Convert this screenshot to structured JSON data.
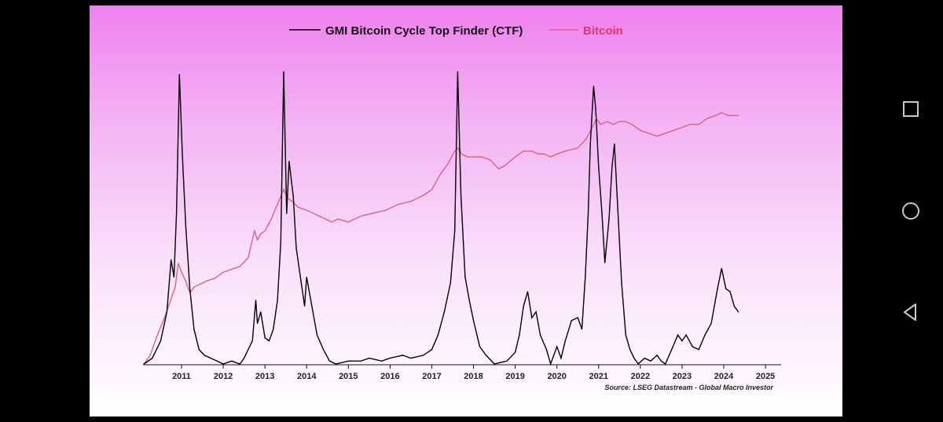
{
  "nav_icons": [
    "recent-apps-icon",
    "home-icon",
    "back-icon"
  ],
  "chart_data": {
    "type": "line",
    "x_ticks": [
      "2011",
      "2012",
      "2013",
      "2014",
      "2015",
      "2016",
      "2017",
      "2018",
      "2019",
      "2020",
      "2021",
      "2022",
      "2023",
      "2024",
      "2025"
    ],
    "x_range": [
      2010.1,
      2025.6
    ],
    "colors": {
      "ctf": "#000000",
      "bitcoin": "#e0607e",
      "legend_bitcoin_text": "#e0386a"
    },
    "legend": {
      "position": "top",
      "ctf_label": "GMI Bitcoin Cycle Top Finder (CTF)",
      "btc_label": "Bitcoin"
    },
    "source": "Source: LSEG Datastream - Global Macro Investor",
    "grid": false,
    "series": [
      {
        "name": "GMI Bitcoin Cycle Top Finder (CTF)",
        "scale": "normalized 0-100",
        "points": [
          [
            2010.1,
            0
          ],
          [
            2010.3,
            2
          ],
          [
            2010.5,
            8
          ],
          [
            2010.65,
            18
          ],
          [
            2010.75,
            36
          ],
          [
            2010.82,
            30
          ],
          [
            2010.88,
            52
          ],
          [
            2010.95,
            100
          ],
          [
            2011.02,
            72
          ],
          [
            2011.1,
            48
          ],
          [
            2011.2,
            26
          ],
          [
            2011.3,
            12
          ],
          [
            2011.42,
            5
          ],
          [
            2011.55,
            3
          ],
          [
            2011.7,
            2
          ],
          [
            2011.85,
            1
          ],
          [
            2012.0,
            0
          ],
          [
            2012.2,
            1
          ],
          [
            2012.4,
            0
          ],
          [
            2012.5,
            2
          ],
          [
            2012.7,
            8
          ],
          [
            2012.78,
            22
          ],
          [
            2012.82,
            14
          ],
          [
            2012.9,
            18
          ],
          [
            2013.0,
            9
          ],
          [
            2013.1,
            8
          ],
          [
            2013.2,
            12
          ],
          [
            2013.3,
            22
          ],
          [
            2013.38,
            42
          ],
          [
            2013.45,
            101
          ],
          [
            2013.52,
            52
          ],
          [
            2013.58,
            70
          ],
          [
            2013.68,
            58
          ],
          [
            2013.75,
            40
          ],
          [
            2013.85,
            30
          ],
          [
            2013.95,
            20
          ],
          [
            2014.0,
            30
          ],
          [
            2014.1,
            22
          ],
          [
            2014.25,
            10
          ],
          [
            2014.4,
            5
          ],
          [
            2014.55,
            1
          ],
          [
            2014.7,
            0
          ],
          [
            2015.0,
            1
          ],
          [
            2015.3,
            1
          ],
          [
            2015.5,
            2
          ],
          [
            2015.8,
            1
          ],
          [
            2016.0,
            2
          ],
          [
            2016.3,
            3
          ],
          [
            2016.5,
            2
          ],
          [
            2016.8,
            3
          ],
          [
            2017.0,
            5
          ],
          [
            2017.15,
            10
          ],
          [
            2017.3,
            18
          ],
          [
            2017.45,
            28
          ],
          [
            2017.55,
            46
          ],
          [
            2017.62,
            101
          ],
          [
            2017.7,
            58
          ],
          [
            2017.8,
            30
          ],
          [
            2017.9,
            22
          ],
          [
            2018.0,
            15
          ],
          [
            2018.15,
            6
          ],
          [
            2018.3,
            3
          ],
          [
            2018.5,
            0
          ],
          [
            2018.8,
            1
          ],
          [
            2019.0,
            4
          ],
          [
            2019.1,
            10
          ],
          [
            2019.2,
            20
          ],
          [
            2019.3,
            25
          ],
          [
            2019.4,
            16
          ],
          [
            2019.5,
            18
          ],
          [
            2019.6,
            10
          ],
          [
            2019.75,
            5
          ],
          [
            2019.85,
            0
          ],
          [
            2020.0,
            6
          ],
          [
            2020.1,
            2
          ],
          [
            2020.2,
            8
          ],
          [
            2020.35,
            15
          ],
          [
            2020.5,
            16
          ],
          [
            2020.6,
            12
          ],
          [
            2020.68,
            30
          ],
          [
            2020.75,
            52
          ],
          [
            2020.8,
            76
          ],
          [
            2020.88,
            96
          ],
          [
            2020.93,
            88
          ],
          [
            2021.0,
            68
          ],
          [
            2021.08,
            52
          ],
          [
            2021.15,
            35
          ],
          [
            2021.25,
            50
          ],
          [
            2021.32,
            68
          ],
          [
            2021.38,
            76
          ],
          [
            2021.45,
            56
          ],
          [
            2021.55,
            28
          ],
          [
            2021.65,
            10
          ],
          [
            2021.75,
            5
          ],
          [
            2021.85,
            2
          ],
          [
            2021.95,
            0
          ],
          [
            2022.1,
            2
          ],
          [
            2022.25,
            1
          ],
          [
            2022.4,
            3
          ],
          [
            2022.5,
            1
          ],
          [
            2022.6,
            0
          ],
          [
            2022.75,
            5
          ],
          [
            2022.9,
            10
          ],
          [
            2023.0,
            8
          ],
          [
            2023.1,
            10
          ],
          [
            2023.25,
            6
          ],
          [
            2023.4,
            5
          ],
          [
            2023.55,
            10
          ],
          [
            2023.7,
            14
          ],
          [
            2023.85,
            26
          ],
          [
            2023.95,
            33
          ],
          [
            2024.05,
            26
          ],
          [
            2024.15,
            25
          ],
          [
            2024.25,
            20
          ],
          [
            2024.35,
            18
          ]
        ]
      },
      {
        "name": "Bitcoin",
        "scale": "log (normalized 0-100)",
        "points": [
          [
            2010.1,
            0
          ],
          [
            2010.25,
            3
          ],
          [
            2010.4,
            9
          ],
          [
            2010.6,
            16
          ],
          [
            2010.75,
            22
          ],
          [
            2010.85,
            26
          ],
          [
            2010.92,
            34
          ],
          [
            2011.0,
            31
          ],
          [
            2011.1,
            28
          ],
          [
            2011.2,
            24
          ],
          [
            2011.3,
            26
          ],
          [
            2011.45,
            27
          ],
          [
            2011.6,
            28
          ],
          [
            2011.8,
            29
          ],
          [
            2012.0,
            31
          ],
          [
            2012.2,
            32
          ],
          [
            2012.4,
            33
          ],
          [
            2012.6,
            36
          ],
          [
            2012.75,
            45
          ],
          [
            2012.82,
            42
          ],
          [
            2012.9,
            44
          ],
          [
            2013.0,
            45
          ],
          [
            2013.15,
            49
          ],
          [
            2013.3,
            54
          ],
          [
            2013.45,
            59
          ],
          [
            2013.55,
            56
          ],
          [
            2013.65,
            55
          ],
          [
            2013.8,
            53
          ],
          [
            2014.0,
            52
          ],
          [
            2014.3,
            50
          ],
          [
            2014.6,
            48
          ],
          [
            2014.75,
            49
          ],
          [
            2015.0,
            48
          ],
          [
            2015.3,
            50
          ],
          [
            2015.6,
            51
          ],
          [
            2015.9,
            52
          ],
          [
            2016.2,
            54
          ],
          [
            2016.5,
            55
          ],
          [
            2016.8,
            57
          ],
          [
            2017.0,
            59
          ],
          [
            2017.2,
            64
          ],
          [
            2017.4,
            68
          ],
          [
            2017.55,
            72
          ],
          [
            2017.62,
            73
          ],
          [
            2017.72,
            71
          ],
          [
            2017.85,
            70
          ],
          [
            2018.0,
            70
          ],
          [
            2018.2,
            70
          ],
          [
            2018.4,
            69
          ],
          [
            2018.6,
            66
          ],
          [
            2018.75,
            67
          ],
          [
            2019.0,
            70
          ],
          [
            2019.2,
            72
          ],
          [
            2019.4,
            72
          ],
          [
            2019.55,
            71
          ],
          [
            2019.7,
            71
          ],
          [
            2019.85,
            70
          ],
          [
            2020.0,
            71
          ],
          [
            2020.2,
            72
          ],
          [
            2020.5,
            73
          ],
          [
            2020.7,
            76
          ],
          [
            2020.85,
            80
          ],
          [
            2020.95,
            83
          ],
          [
            2021.05,
            81
          ],
          [
            2021.2,
            82
          ],
          [
            2021.35,
            81
          ],
          [
            2021.5,
            82
          ],
          [
            2021.65,
            82
          ],
          [
            2021.8,
            81
          ],
          [
            2022.0,
            79
          ],
          [
            2022.2,
            78
          ],
          [
            2022.4,
            77
          ],
          [
            2022.6,
            78
          ],
          [
            2022.8,
            79
          ],
          [
            2023.0,
            80
          ],
          [
            2023.2,
            81
          ],
          [
            2023.4,
            81
          ],
          [
            2023.6,
            83
          ],
          [
            2023.8,
            84
          ],
          [
            2023.95,
            85
          ],
          [
            2024.1,
            84
          ],
          [
            2024.25,
            84
          ],
          [
            2024.35,
            84
          ]
        ]
      }
    ]
  }
}
